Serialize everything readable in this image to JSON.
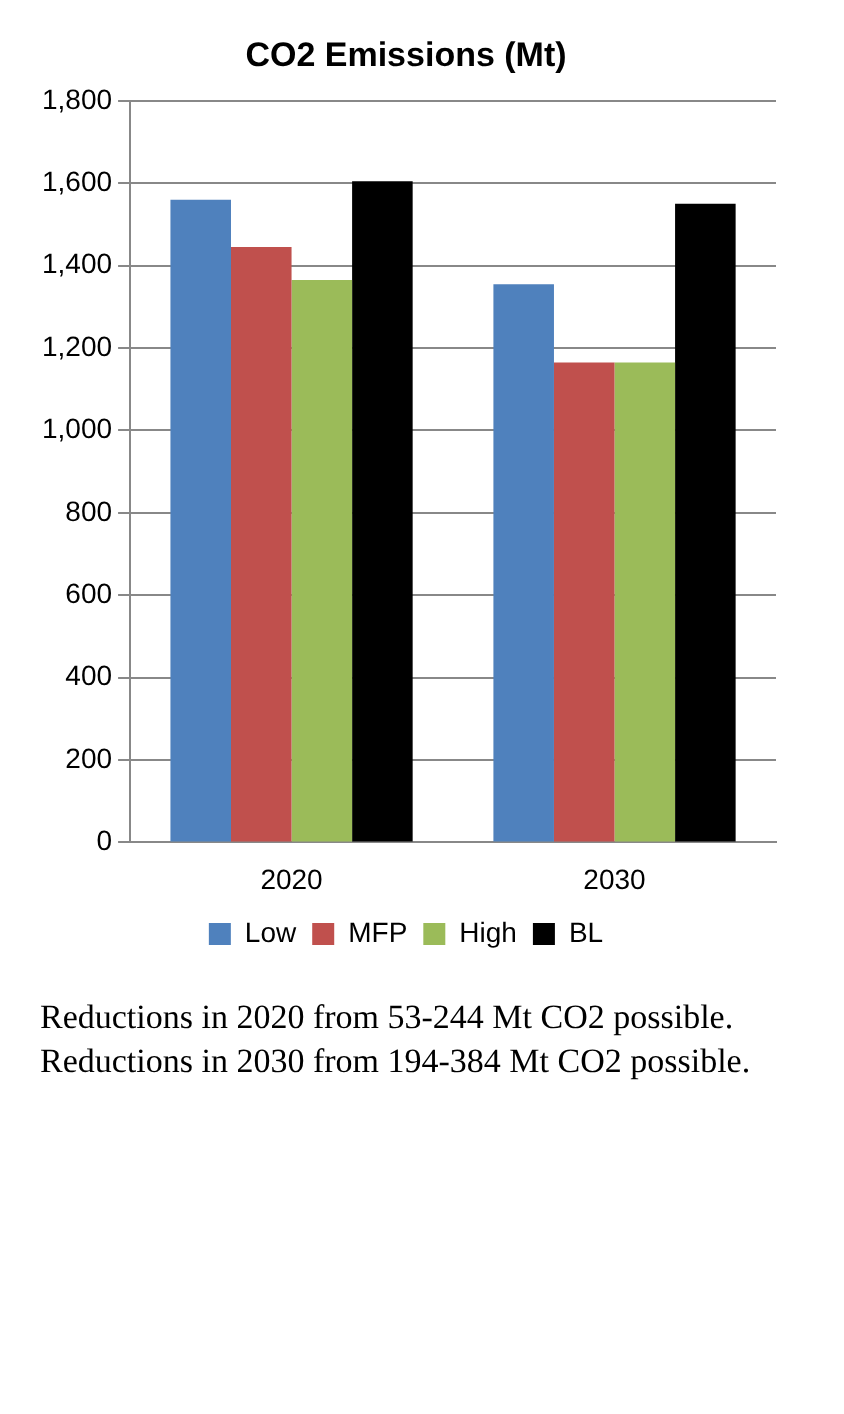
{
  "chart_data": {
    "type": "bar",
    "title": "CO2 Emissions (Mt)",
    "categories": [
      "2020",
      "2030"
    ],
    "series": [
      {
        "name": "Low",
        "color": "#4f81bd",
        "values": [
          1560,
          1355
        ]
      },
      {
        "name": "MFP",
        "color": "#c0504d",
        "values": [
          1445,
          1165
        ]
      },
      {
        "name": "High",
        "color": "#9bbb59",
        "values": [
          1365,
          1165
        ]
      },
      {
        "name": "BL",
        "color": "#000000",
        "values": [
          1605,
          1550
        ]
      }
    ],
    "ylim": [
      0,
      1800
    ],
    "yticks": [
      0,
      200,
      400,
      600,
      800,
      {
        "value": 1000,
        "label": "1,000"
      },
      {
        "value": 1200,
        "label": "1,200"
      },
      {
        "value": 1400,
        "label": "1,400"
      },
      {
        "value": 1600,
        "label": "1,600"
      },
      {
        "value": 1800,
        "label": "1,800"
      }
    ],
    "grid": "y",
    "legend": "bottom",
    "annotations": [
      "Reductions in 2020 from 53-244 Mt CO2 possible.  Reductions in 2030 from 194-384 Mt CO2 possible."
    ]
  }
}
